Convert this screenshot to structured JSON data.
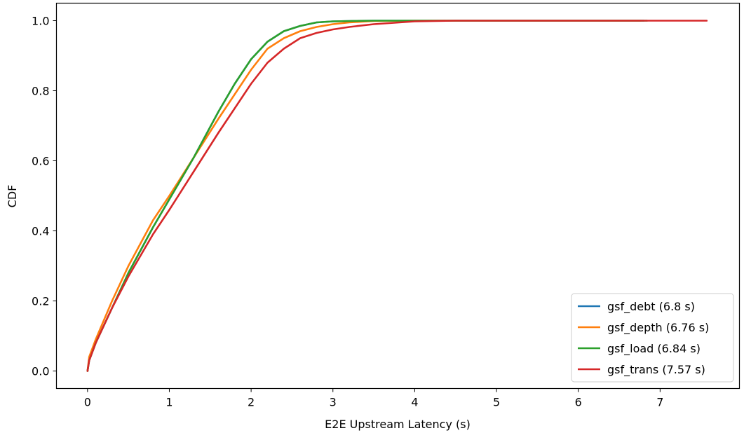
{
  "chart_data": {
    "type": "line",
    "title": "",
    "xlabel": "E2E Upstream Latency (s)",
    "ylabel": "CDF",
    "xlim": [
      -0.38,
      7.97
    ],
    "ylim": [
      -0.05,
      1.05
    ],
    "xticks": [
      0,
      1,
      2,
      3,
      4,
      5,
      6,
      7
    ],
    "yticks": [
      0.0,
      0.2,
      0.4,
      0.6,
      0.8,
      1.0
    ],
    "xtick_labels": [
      "0",
      "1",
      "2",
      "3",
      "4",
      "5",
      "6",
      "7"
    ],
    "ytick_labels": [
      "0.0",
      "0.2",
      "0.4",
      "0.6",
      "0.8",
      "1.0"
    ],
    "grid": false,
    "legend_position": "bottom-right",
    "series": [
      {
        "name": "gsf_debt (6.8 s)",
        "color": "#1f77b4",
        "x": [
          0,
          0.02,
          0.1,
          0.3,
          0.5,
          0.8,
          1.0,
          1.3,
          1.6,
          1.8,
          2.0,
          2.2,
          2.4,
          2.6,
          2.8,
          3.0,
          3.2,
          3.5,
          4.0,
          5.0,
          6.0,
          6.8
        ],
        "y": [
          0,
          0.03,
          0.08,
          0.18,
          0.28,
          0.41,
          0.49,
          0.61,
          0.74,
          0.82,
          0.89,
          0.94,
          0.97,
          0.985,
          0.995,
          0.998,
          0.999,
          1.0,
          1.0,
          1.0,
          1.0,
          1.0
        ]
      },
      {
        "name": "gsf_depth (6.76 s)",
        "color": "#ff7f0e",
        "x": [
          0,
          0.02,
          0.1,
          0.3,
          0.5,
          0.8,
          1.0,
          1.3,
          1.6,
          1.8,
          2.0,
          2.2,
          2.4,
          2.6,
          2.8,
          3.0,
          3.2,
          3.5,
          4.0,
          5.0,
          6.0,
          6.76
        ],
        "y": [
          0,
          0.04,
          0.09,
          0.2,
          0.3,
          0.43,
          0.5,
          0.61,
          0.72,
          0.79,
          0.86,
          0.92,
          0.95,
          0.97,
          0.982,
          0.99,
          0.995,
          0.999,
          1.0,
          1.0,
          1.0,
          1.0
        ]
      },
      {
        "name": "gsf_load (6.84 s)",
        "color": "#2ca02c",
        "x": [
          0,
          0.02,
          0.1,
          0.3,
          0.5,
          0.8,
          1.0,
          1.3,
          1.6,
          1.8,
          2.0,
          2.2,
          2.4,
          2.6,
          2.8,
          3.0,
          3.2,
          3.5,
          4.0,
          5.0,
          6.0,
          6.84
        ],
        "y": [
          0,
          0.03,
          0.08,
          0.18,
          0.28,
          0.41,
          0.49,
          0.61,
          0.74,
          0.82,
          0.89,
          0.94,
          0.97,
          0.985,
          0.995,
          0.998,
          0.999,
          1.0,
          1.0,
          1.0,
          1.0,
          1.0
        ]
      },
      {
        "name": "gsf_trans (7.57 s)",
        "color": "#d62728",
        "x": [
          0,
          0.02,
          0.1,
          0.3,
          0.5,
          0.8,
          1.0,
          1.3,
          1.6,
          1.8,
          2.0,
          2.2,
          2.4,
          2.6,
          2.8,
          3.0,
          3.2,
          3.5,
          4.0,
          4.5,
          5.0,
          6.0,
          7.0,
          7.57
        ],
        "y": [
          0,
          0.03,
          0.08,
          0.18,
          0.27,
          0.39,
          0.46,
          0.57,
          0.68,
          0.75,
          0.82,
          0.88,
          0.92,
          0.95,
          0.965,
          0.975,
          0.982,
          0.99,
          0.998,
          1.0,
          1.0,
          1.0,
          1.0,
          1.0
        ]
      }
    ]
  }
}
